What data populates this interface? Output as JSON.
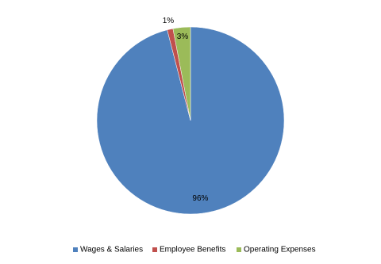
{
  "chart_data": {
    "type": "pie",
    "categories": [
      "Wages & Salaries",
      "Employee Benefits",
      "Operating Expenses"
    ],
    "values": [
      96,
      1,
      3
    ],
    "value_labels": [
      "96%",
      "1%",
      "3%"
    ],
    "colors": [
      "#4f81bd",
      "#c0504d",
      "#9bbb59"
    ],
    "legend": "bottom"
  }
}
